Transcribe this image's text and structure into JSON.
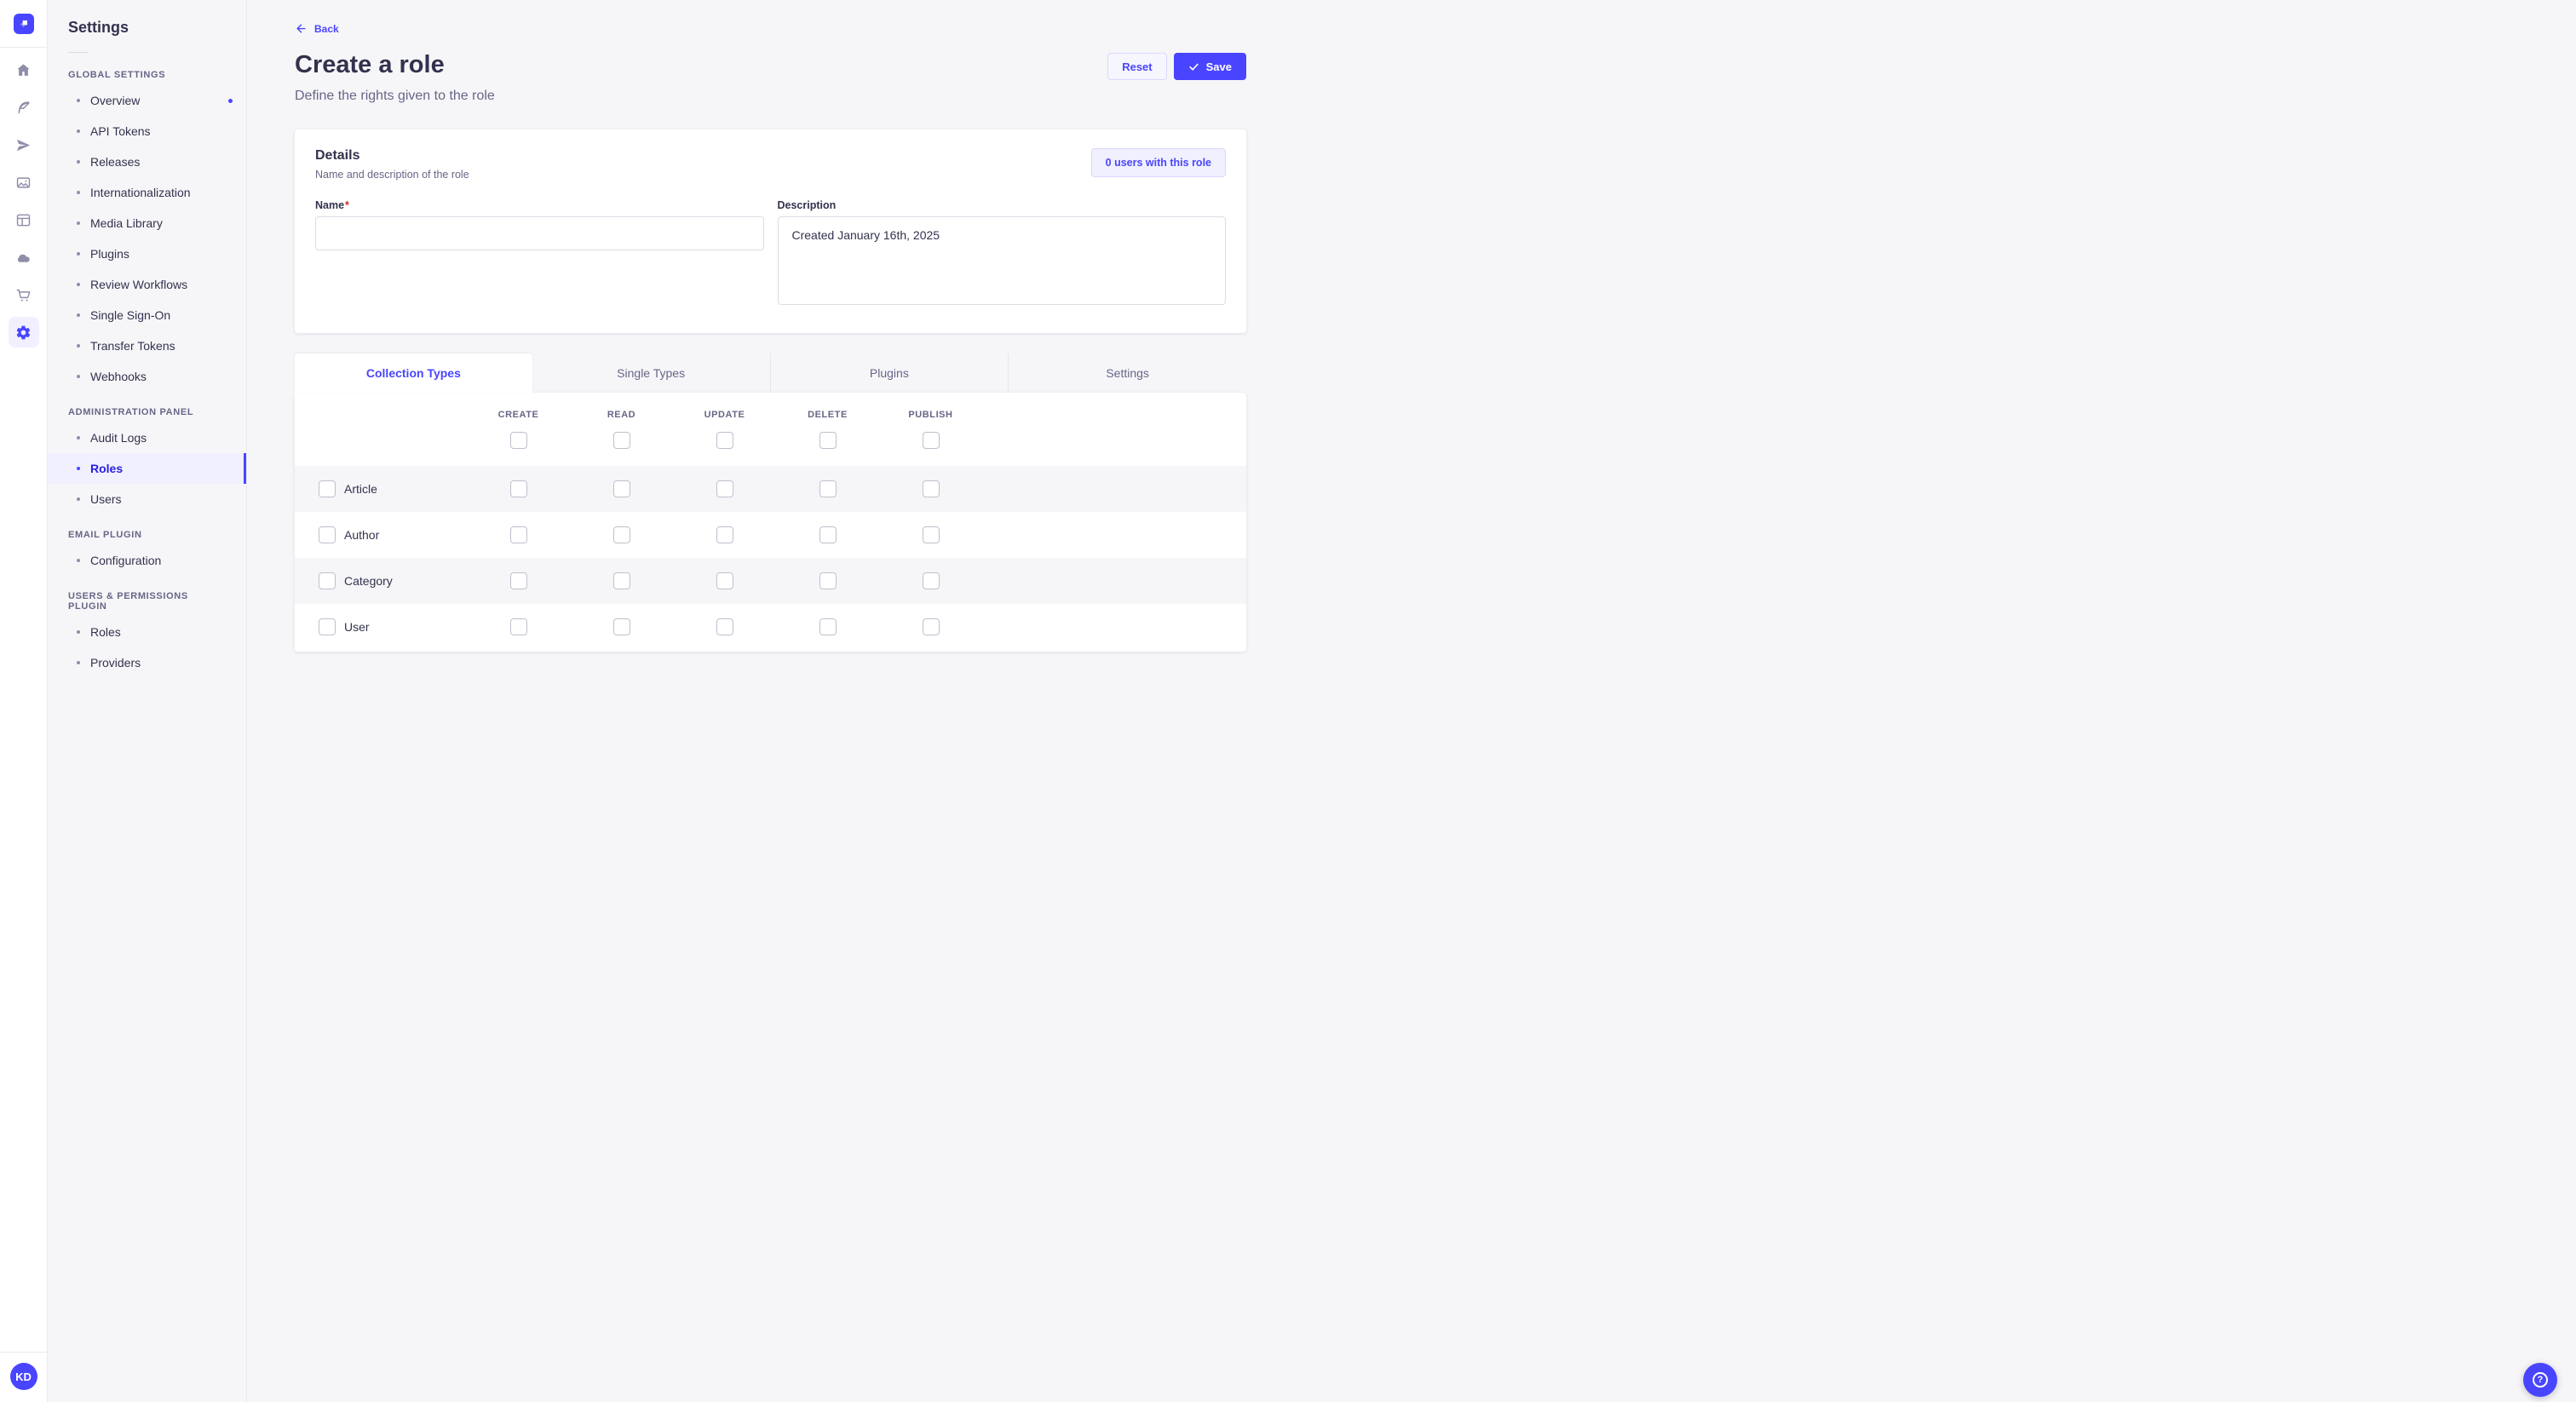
{
  "colors": {
    "accent": "#4945ff",
    "accent_dark": "#271fe0",
    "selected_bg": "#f0f0ff",
    "text": "#32324d",
    "muted": "#666687",
    "border": "#dcdce4",
    "page_bg": "#f6f6f9",
    "required": "#d02b20"
  },
  "rail": {
    "logo_icon": "strapi-logo",
    "avatar_initials": "KD",
    "icons": [
      {
        "name": "home-icon",
        "active": false
      },
      {
        "name": "content-manager-icon",
        "active": false
      },
      {
        "name": "releases-icon",
        "active": false
      },
      {
        "name": "media-library-icon",
        "active": false
      },
      {
        "name": "content-type-builder-icon",
        "active": false
      },
      {
        "name": "deploy-icon",
        "active": false
      },
      {
        "name": "marketplace-icon",
        "active": false
      },
      {
        "name": "settings-icon",
        "active": true
      }
    ]
  },
  "sidebar": {
    "title": "Settings",
    "sections": [
      {
        "label": "GLOBAL SETTINGS",
        "items": [
          {
            "label": "Overview",
            "active": false,
            "dot": true
          },
          {
            "label": "API Tokens",
            "active": false,
            "dot": false
          },
          {
            "label": "Releases",
            "active": false,
            "dot": false
          },
          {
            "label": "Internationalization",
            "active": false,
            "dot": false
          },
          {
            "label": "Media Library",
            "active": false,
            "dot": false
          },
          {
            "label": "Plugins",
            "active": false,
            "dot": false
          },
          {
            "label": "Review Workflows",
            "active": false,
            "dot": false
          },
          {
            "label": "Single Sign-On",
            "active": false,
            "dot": false
          },
          {
            "label": "Transfer Tokens",
            "active": false,
            "dot": false
          },
          {
            "label": "Webhooks",
            "active": false,
            "dot": false
          }
        ]
      },
      {
        "label": "ADMINISTRATION PANEL",
        "items": [
          {
            "label": "Audit Logs",
            "active": false,
            "dot": false
          },
          {
            "label": "Roles",
            "active": true,
            "dot": false
          },
          {
            "label": "Users",
            "active": false,
            "dot": false
          }
        ]
      },
      {
        "label": "EMAIL PLUGIN",
        "items": [
          {
            "label": "Configuration",
            "active": false,
            "dot": false
          }
        ]
      },
      {
        "label": "USERS & PERMISSIONS PLUGIN",
        "items": [
          {
            "label": "Roles",
            "active": false,
            "dot": false
          },
          {
            "label": "Providers",
            "active": false,
            "dot": false
          }
        ]
      }
    ]
  },
  "header": {
    "back_label": "Back",
    "title": "Create a role",
    "subtitle": "Define the rights given to the role",
    "reset_label": "Reset",
    "save_label": "Save"
  },
  "details": {
    "title": "Details",
    "subtitle": "Name and description of the role",
    "users_button": "0 users with this role",
    "name_label": "Name",
    "required_mark": "*",
    "name_value": "",
    "description_label": "Description",
    "description_value": "Created January 16th, 2025"
  },
  "permissions": {
    "tabs": [
      {
        "label": "Collection Types",
        "active": true
      },
      {
        "label": "Single Types",
        "active": false
      },
      {
        "label": "Plugins",
        "active": false
      },
      {
        "label": "Settings",
        "active": false
      }
    ],
    "columns": [
      "CREATE",
      "READ",
      "UPDATE",
      "DELETE",
      "PUBLISH"
    ],
    "select_all_checked": [
      false,
      false,
      false,
      false,
      false
    ],
    "rows": [
      {
        "name": "Article",
        "row_checked": false,
        "checks": [
          false,
          false,
          false,
          false,
          false
        ]
      },
      {
        "name": "Author",
        "row_checked": false,
        "checks": [
          false,
          false,
          false,
          false,
          false
        ]
      },
      {
        "name": "Category",
        "row_checked": false,
        "checks": [
          false,
          false,
          false,
          false,
          false
        ]
      },
      {
        "name": "User",
        "row_checked": false,
        "checks": [
          false,
          false,
          false,
          false,
          false
        ]
      }
    ]
  },
  "fab": {
    "label": "?"
  }
}
